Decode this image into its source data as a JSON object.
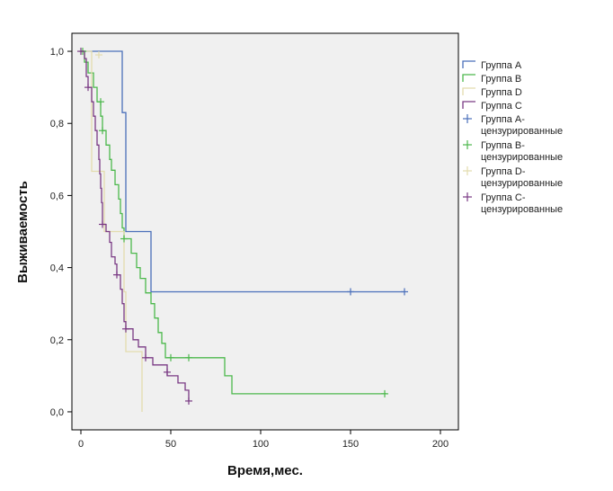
{
  "chart_data": {
    "type": "line",
    "xlabel": "Время,мес.",
    "ylabel": "Выживаемость",
    "xlim": [
      -5,
      210
    ],
    "ylim": [
      -0.05,
      1.05
    ],
    "x_ticks": [
      0,
      50,
      100,
      150,
      200
    ],
    "x_tick_labels": [
      "0",
      "50",
      "100",
      "150",
      "200"
    ],
    "y_ticks": [
      0.0,
      0.2,
      0.4,
      0.6,
      0.8,
      1.0
    ],
    "y_tick_labels": [
      "0,0",
      "0,2",
      "0,4",
      "0,6",
      "0,8",
      "1,0"
    ],
    "grid": false,
    "legend_position": "right",
    "plot_background": "#f0f0f0",
    "series": [
      {
        "name": "Группа A",
        "censored_label": "Группа A-цензурированные",
        "color": "#4a6fba",
        "steps": [
          [
            0,
            1.0
          ],
          [
            23,
            1.0
          ],
          [
            23,
            0.83
          ],
          [
            25,
            0.83
          ],
          [
            25,
            0.5
          ],
          [
            39,
            0.5
          ],
          [
            39,
            0.333
          ],
          [
            180,
            0.333
          ]
        ],
        "censored": [
          [
            150,
            0.333
          ],
          [
            180,
            0.333
          ]
        ]
      },
      {
        "name": "Группа B",
        "censored_label": "Группа B-цензурированные",
        "color": "#4cb84c",
        "steps": [
          [
            0,
            1.0
          ],
          [
            2,
            1.0
          ],
          [
            2,
            0.97
          ],
          [
            4,
            0.97
          ],
          [
            4,
            0.94
          ],
          [
            7,
            0.94
          ],
          [
            7,
            0.9
          ],
          [
            9,
            0.9
          ],
          [
            9,
            0.86
          ],
          [
            11,
            0.86
          ],
          [
            11,
            0.82
          ],
          [
            12,
            0.82
          ],
          [
            12,
            0.78
          ],
          [
            14,
            0.78
          ],
          [
            14,
            0.74
          ],
          [
            16,
            0.74
          ],
          [
            16,
            0.7
          ],
          [
            17,
            0.7
          ],
          [
            17,
            0.67
          ],
          [
            19,
            0.67
          ],
          [
            19,
            0.63
          ],
          [
            21,
            0.63
          ],
          [
            21,
            0.59
          ],
          [
            22,
            0.59
          ],
          [
            22,
            0.55
          ],
          [
            23,
            0.55
          ],
          [
            23,
            0.51
          ],
          [
            24,
            0.51
          ],
          [
            24,
            0.48
          ],
          [
            28,
            0.48
          ],
          [
            28,
            0.44
          ],
          [
            31,
            0.44
          ],
          [
            31,
            0.4
          ],
          [
            33,
            0.4
          ],
          [
            33,
            0.37
          ],
          [
            36,
            0.37
          ],
          [
            36,
            0.33
          ],
          [
            39,
            0.33
          ],
          [
            39,
            0.3
          ],
          [
            41,
            0.3
          ],
          [
            41,
            0.26
          ],
          [
            43,
            0.26
          ],
          [
            43,
            0.22
          ],
          [
            45,
            0.22
          ],
          [
            45,
            0.19
          ],
          [
            47,
            0.19
          ],
          [
            47,
            0.15
          ],
          [
            80,
            0.15
          ],
          [
            80,
            0.1
          ],
          [
            84,
            0.1
          ],
          [
            84,
            0.05
          ],
          [
            170,
            0.05
          ]
        ],
        "censored": [
          [
            1,
            1.0
          ],
          [
            11,
            0.86
          ],
          [
            12,
            0.78
          ],
          [
            24,
            0.48
          ],
          [
            50,
            0.15
          ],
          [
            60,
            0.15
          ],
          [
            169,
            0.05
          ]
        ]
      },
      {
        "name": "Группа D",
        "censored_label": "Группа D-цензурированные",
        "color": "#e3dcae",
        "steps": [
          [
            0,
            1.0
          ],
          [
            6,
            1.0
          ],
          [
            6,
            0.667
          ],
          [
            13,
            0.667
          ],
          [
            13,
            0.5
          ],
          [
            24,
            0.5
          ],
          [
            24,
            0.333
          ],
          [
            25,
            0.333
          ],
          [
            25,
            0.167
          ],
          [
            34,
            0.167
          ],
          [
            34,
            0.0
          ]
        ],
        "censored": [
          [
            10,
            0.99
          ]
        ]
      },
      {
        "name": "Группа C",
        "censored_label": "Группа C-цензурированные",
        "color": "#7a3a84",
        "steps": [
          [
            0,
            1.0
          ],
          [
            2,
            1.0
          ],
          [
            2,
            0.98
          ],
          [
            3,
            0.98
          ],
          [
            3,
            0.93
          ],
          [
            4,
            0.93
          ],
          [
            4,
            0.9
          ],
          [
            6,
            0.9
          ],
          [
            6,
            0.86
          ],
          [
            7,
            0.86
          ],
          [
            7,
            0.82
          ],
          [
            8,
            0.82
          ],
          [
            8,
            0.78
          ],
          [
            9,
            0.78
          ],
          [
            9,
            0.74
          ],
          [
            10,
            0.74
          ],
          [
            10,
            0.7
          ],
          [
            10.5,
            0.7
          ],
          [
            10.5,
            0.66
          ],
          [
            11,
            0.66
          ],
          [
            11,
            0.62
          ],
          [
            11.5,
            0.62
          ],
          [
            11.5,
            0.58
          ],
          [
            12,
            0.58
          ],
          [
            12,
            0.52
          ],
          [
            14,
            0.52
          ],
          [
            14,
            0.5
          ],
          [
            16,
            0.5
          ],
          [
            16,
            0.47
          ],
          [
            17,
            0.47
          ],
          [
            17,
            0.43
          ],
          [
            19,
            0.43
          ],
          [
            19,
            0.41
          ],
          [
            20,
            0.41
          ],
          [
            20,
            0.38
          ],
          [
            22,
            0.38
          ],
          [
            22,
            0.34
          ],
          [
            23,
            0.34
          ],
          [
            23,
            0.3
          ],
          [
            24,
            0.3
          ],
          [
            24,
            0.25
          ],
          [
            25,
            0.25
          ],
          [
            25,
            0.23
          ],
          [
            29,
            0.23
          ],
          [
            29,
            0.2
          ],
          [
            32,
            0.2
          ],
          [
            32,
            0.18
          ],
          [
            36,
            0.18
          ],
          [
            36,
            0.15
          ],
          [
            40,
            0.15
          ],
          [
            40,
            0.13
          ],
          [
            48,
            0.13
          ],
          [
            48,
            0.1
          ],
          [
            54,
            0.1
          ],
          [
            54,
            0.08
          ],
          [
            58,
            0.08
          ],
          [
            58,
            0.06
          ],
          [
            60,
            0.06
          ],
          [
            60,
            0.03
          ]
        ],
        "censored": [
          [
            0,
            1.0
          ],
          [
            4,
            0.9
          ],
          [
            12,
            0.52
          ],
          [
            20,
            0.38
          ],
          [
            25,
            0.23
          ],
          [
            36,
            0.15
          ],
          [
            48,
            0.11
          ],
          [
            60,
            0.03
          ]
        ]
      }
    ]
  }
}
